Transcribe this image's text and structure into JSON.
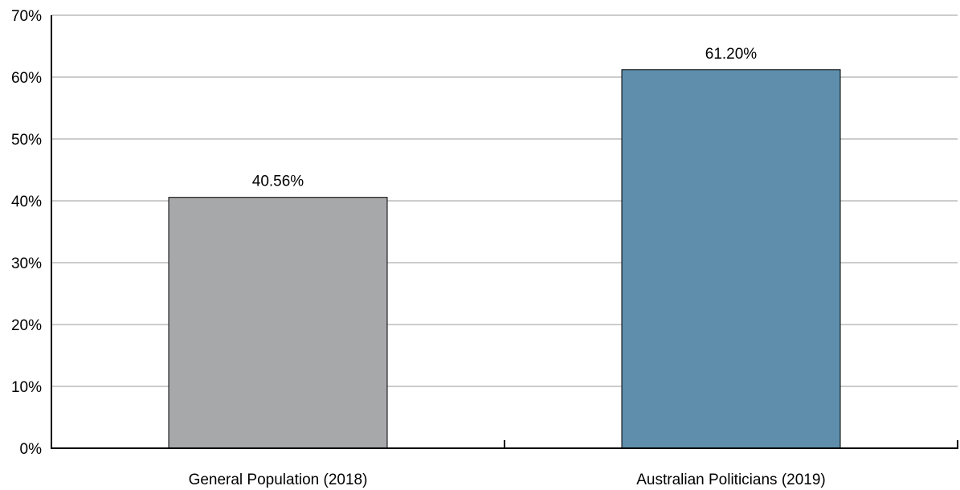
{
  "chart_data": {
    "type": "bar",
    "title": "",
    "xlabel": "",
    "ylabel": "",
    "categories": [
      "General Population (2018)",
      "Australian Politicians (2019)"
    ],
    "values": [
      40.56,
      61.2
    ],
    "value_labels": [
      "40.56%",
      "61.20%"
    ],
    "colors": [
      "#A7A8AA",
      "#5E8EAC"
    ],
    "ylim": [
      0,
      70
    ],
    "yticks": [
      0,
      10,
      20,
      30,
      40,
      50,
      60,
      70
    ],
    "ytick_labels": [
      "0%",
      "10%",
      "20%",
      "30%",
      "40%",
      "50%",
      "60%",
      "70%"
    ],
    "grid": true,
    "legend": "none"
  }
}
